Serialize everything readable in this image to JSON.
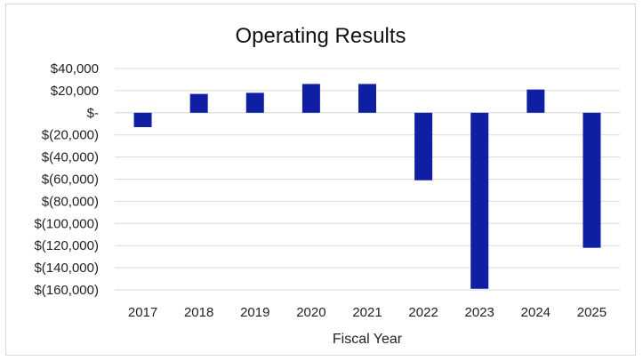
{
  "chart_data": {
    "type": "bar",
    "title": "Operating Results",
    "xlabel": "Fiscal Year",
    "ylabel": "",
    "categories": [
      "2017",
      "2018",
      "2019",
      "2020",
      "2021",
      "2022",
      "2023",
      "2024",
      "2025"
    ],
    "values": [
      -13000,
      17000,
      18000,
      26000,
      26000,
      -61000,
      -159000,
      21000,
      -122000
    ],
    "ylim": [
      -160000,
      40000
    ],
    "yticks": [
      40000,
      20000,
      0,
      -20000,
      -40000,
      -60000,
      -80000,
      -100000,
      -120000,
      -140000,
      -160000
    ],
    "ytick_labels": [
      "$40,000",
      "$20,000",
      "$-",
      "$(20,000)",
      "$(40,000)",
      "$(60,000)",
      "$(80,000)",
      "$(100,000)",
      "$(120,000)",
      "$(140,000)",
      "$(160,000)"
    ],
    "grid": true,
    "legend": "none",
    "bar_color": "#0f1fa3",
    "grid_color": "#d9d9d9"
  }
}
